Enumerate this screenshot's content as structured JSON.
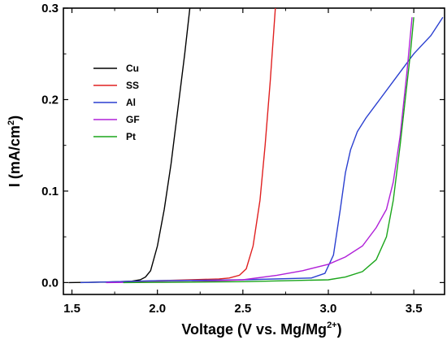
{
  "chart_data": {
    "type": "line",
    "title": "",
    "xlabel": "Voltage (V vs. Mg/Mg",
    "xlabel_sup": "2+",
    "xlabel_close": ")",
    "ylabel": "I (mA/cm",
    "ylabel_sup": "2",
    "ylabel_close": ")",
    "xlim": [
      1.45,
      3.68
    ],
    "ylim": [
      -0.013,
      0.3
    ],
    "xticks": [
      1.5,
      2.0,
      2.5,
      3.0,
      3.5
    ],
    "xtick_labels": [
      "1.5",
      "2.0",
      "2.5",
      "3.0",
      "3.5"
    ],
    "yticks": [
      0.0,
      0.1,
      0.2,
      0.3
    ],
    "ytick_labels": [
      "0.0",
      "0.1",
      "0.2",
      "0.3"
    ],
    "grid": false,
    "legend_position": "upper-left",
    "series": [
      {
        "name": "Cu",
        "color": "#000000",
        "x": [
          1.48,
          1.7,
          1.85,
          1.9,
          1.93,
          1.96,
          2.0,
          2.04,
          2.08,
          2.12,
          2.16,
          2.19
        ],
        "y": [
          0.0,
          0.0005,
          0.0015,
          0.003,
          0.006,
          0.013,
          0.04,
          0.08,
          0.13,
          0.19,
          0.25,
          0.3
        ]
      },
      {
        "name": "SS",
        "color": "#e02020",
        "x": [
          1.8,
          2.2,
          2.36,
          2.42,
          2.48,
          2.52,
          2.56,
          2.6,
          2.63,
          2.66,
          2.69
        ],
        "y": [
          0.001,
          0.003,
          0.004,
          0.005,
          0.008,
          0.015,
          0.04,
          0.09,
          0.15,
          0.22,
          0.3
        ]
      },
      {
        "name": "Al",
        "color": "#2a3fd0",
        "x": [
          1.55,
          2.0,
          2.5,
          2.9,
          2.98,
          3.03,
          3.07,
          3.1,
          3.13,
          3.17,
          3.22,
          3.3,
          3.4,
          3.5,
          3.6,
          3.67
        ],
        "y": [
          0.0,
          0.002,
          0.003,
          0.005,
          0.01,
          0.03,
          0.08,
          0.12,
          0.145,
          0.165,
          0.18,
          0.2,
          0.225,
          0.25,
          0.27,
          0.29
        ]
      },
      {
        "name": "GF",
        "color": "#b020d8",
        "x": [
          1.7,
          2.2,
          2.5,
          2.7,
          2.85,
          3.0,
          3.1,
          3.2,
          3.28,
          3.34,
          3.38,
          3.42,
          3.46,
          3.49
        ],
        "y": [
          0.0,
          0.001,
          0.003,
          0.008,
          0.013,
          0.02,
          0.028,
          0.04,
          0.06,
          0.08,
          0.11,
          0.16,
          0.23,
          0.29
        ]
      },
      {
        "name": "Pt",
        "color": "#1aa51a",
        "x": [
          1.8,
          2.5,
          3.0,
          3.1,
          3.2,
          3.28,
          3.34,
          3.38,
          3.42,
          3.45,
          3.48,
          3.5
        ],
        "y": [
          0.0,
          0.001,
          0.003,
          0.006,
          0.012,
          0.025,
          0.05,
          0.09,
          0.15,
          0.2,
          0.25,
          0.29
        ]
      }
    ]
  }
}
